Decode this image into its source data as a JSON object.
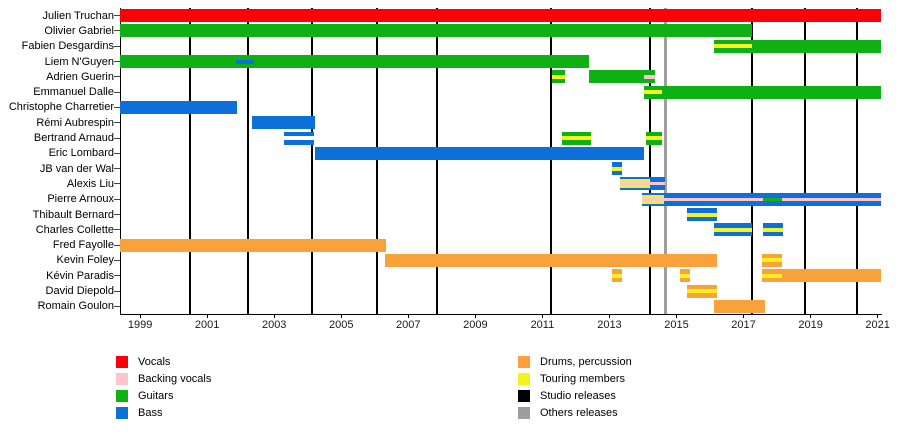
{
  "chart_data": {
    "type": "timeline",
    "title": "",
    "xlabel": "",
    "ylabel": "",
    "x_axis": {
      "tick_years": [
        1999,
        2001,
        2003,
        2005,
        2007,
        2009,
        2011,
        2013,
        2015,
        2017,
        2019,
        2021
      ],
      "range": [
        1998.4,
        2021.1
      ],
      "grid": false
    },
    "colors": {
      "vocals": "#fb0007",
      "backing": "#ffc5cd",
      "guitars": "#0fb014",
      "bass": "#0d6fd8",
      "drums": "#f9a23b",
      "touring": "#f6f120",
      "studio": "#000000",
      "others": "#9e9e9e",
      "white": "#ffffff"
    },
    "members": [
      {
        "name": "Julien Truchan",
        "segments": [
          {
            "from": 1998.4,
            "to": 2021.1,
            "role": "vocals"
          }
        ]
      },
      {
        "name": "Olivier Gabriel",
        "segments": [
          {
            "from": 1998.4,
            "to": 2017.25,
            "role": "guitars"
          }
        ]
      },
      {
        "name": "Fabien Desgardins",
        "segments": [
          {
            "from": 2016.13,
            "to": 2021.1,
            "role": "guitars",
            "stripes": [
              {
                "role": "touring",
                "from": 2016.13,
                "to": 2017.25,
                "band": "mid"
              }
            ]
          }
        ]
      },
      {
        "name": "Liem N'Guyen",
        "segments": [
          {
            "from": 1998.4,
            "to": 2012.4,
            "role": "guitars",
            "stripes": [
              {
                "role": "bass",
                "from": 2001.87,
                "to": 2002.4,
                "band": "mid"
              }
            ]
          }
        ]
      },
      {
        "name": "Adrien Guerin",
        "segments": [
          {
            "from": 2011.3,
            "to": 2011.66,
            "role": "guitars",
            "stripes": [
              {
                "role": "touring",
                "from": 2011.3,
                "to": 2011.66,
                "band": "mid"
              }
            ]
          },
          {
            "from": 2012.4,
            "to": 2014.37,
            "role": "guitars",
            "stripes": [
              {
                "role": "backing",
                "from": 2014.04,
                "to": 2014.37,
                "band": "mid"
              }
            ]
          }
        ]
      },
      {
        "name": "Emmanuel Dalle",
        "segments": [
          {
            "from": 2014.04,
            "to": 2021.1,
            "role": "guitars",
            "stripes": [
              {
                "role": "touring",
                "from": 2014.04,
                "to": 2014.58,
                "band": "mid"
              }
            ]
          }
        ]
      },
      {
        "name": "Christophe Charretier",
        "segments": [
          {
            "from": 1998.4,
            "to": 2001.9,
            "role": "bass"
          }
        ]
      },
      {
        "name": "Rémi Aubrespin",
        "segments": [
          {
            "from": 2002.34,
            "to": 2004.22,
            "role": "bass"
          }
        ]
      },
      {
        "name": "Bertrand Arnaud",
        "segments": [
          {
            "from": 2003.3,
            "to": 2004.19,
            "role": "bass",
            "stripes": [
              {
                "role": "white",
                "from": 2003.3,
                "to": 2004.19,
                "band": "mid"
              }
            ]
          },
          {
            "from": 2011.57,
            "to": 2012.46,
            "role": "guitars",
            "stripes": [
              {
                "role": "touring",
                "from": 2011.57,
                "to": 2012.46,
                "band": "mid"
              }
            ]
          },
          {
            "from": 2014.1,
            "to": 2014.58,
            "role": "guitars",
            "stripes": [
              {
                "role": "touring",
                "from": 2014.1,
                "to": 2014.58,
                "band": "mid"
              }
            ]
          }
        ]
      },
      {
        "name": "Eric Lombard",
        "segments": [
          {
            "from": 2004.22,
            "to": 2014.04,
            "role": "bass"
          }
        ]
      },
      {
        "name": "JB van der Wal",
        "segments": [
          {
            "from": 2013.09,
            "to": 2013.36,
            "role": "bass",
            "stripes": [
              {
                "role": "touring",
                "from": 2013.09,
                "to": 2013.36,
                "band": "mid"
              }
            ]
          }
        ]
      },
      {
        "name": "Alexis Liu",
        "segments": [
          {
            "from": 2013.3,
            "to": 2014.67,
            "role": "bass",
            "stripes": [
              {
                "role": "backing",
                "from": 2013.3,
                "to": 2014.67,
                "band": "center"
              },
              {
                "role": "touring",
                "from": 2013.3,
                "to": 2014.22,
                "band": "upper"
              },
              {
                "role": "touring",
                "from": 2013.3,
                "to": 2014.22,
                "band": "lower"
              }
            ]
          }
        ]
      },
      {
        "name": "Pierre Arnoux",
        "segments": [
          {
            "from": 2013.98,
            "to": 2021.1,
            "role": "bass",
            "stripes": [
              {
                "role": "backing",
                "from": 2013.98,
                "to": 2021.1,
                "band": "center"
              },
              {
                "role": "touring",
                "from": 2013.98,
                "to": 2014.64,
                "band": "upper"
              },
              {
                "role": "touring",
                "from": 2013.98,
                "to": 2014.64,
                "band": "lower"
              },
              {
                "role": "guitars",
                "from": 2017.57,
                "to": 2018.16,
                "band": "center"
              }
            ]
          }
        ]
      },
      {
        "name": "Thibault Bernard",
        "segments": [
          {
            "from": 2015.31,
            "to": 2016.2,
            "role": "bass",
            "stripes": [
              {
                "role": "touring",
                "from": 2015.31,
                "to": 2016.2,
                "band": "mid"
              }
            ]
          }
        ]
      },
      {
        "name": "Charles Collette",
        "segments": [
          {
            "from": 2016.13,
            "to": 2017.25,
            "role": "bass",
            "stripes": [
              {
                "role": "touring",
                "from": 2016.13,
                "to": 2017.25,
                "band": "mid"
              }
            ]
          },
          {
            "from": 2017.57,
            "to": 2018.17,
            "role": "bass",
            "stripes": [
              {
                "role": "touring",
                "from": 2017.57,
                "to": 2018.17,
                "band": "mid"
              }
            ]
          }
        ]
      },
      {
        "name": "Fred Fayolle",
        "segments": [
          {
            "from": 1998.4,
            "to": 2006.33,
            "role": "drums"
          }
        ]
      },
      {
        "name": "Kevin Foley",
        "segments": [
          {
            "from": 2006.3,
            "to": 2016.2,
            "role": "drums"
          },
          {
            "from": 2017.54,
            "to": 2018.16,
            "role": "drums",
            "stripes": [
              {
                "role": "touring",
                "from": 2017.54,
                "to": 2018.16,
                "band": "mid"
              }
            ]
          }
        ]
      },
      {
        "name": "Kévin Paradis",
        "segments": [
          {
            "from": 2013.09,
            "to": 2013.36,
            "role": "drums",
            "stripes": [
              {
                "role": "touring",
                "from": 2013.09,
                "to": 2013.36,
                "band": "mid"
              }
            ]
          },
          {
            "from": 2015.1,
            "to": 2015.4,
            "role": "drums",
            "stripes": [
              {
                "role": "touring",
                "from": 2015.1,
                "to": 2015.4,
                "band": "mid"
              }
            ]
          },
          {
            "from": 2017.54,
            "to": 2021.1,
            "role": "drums",
            "stripes": [
              {
                "role": "touring",
                "from": 2017.54,
                "to": 2018.16,
                "band": "mid"
              }
            ]
          }
        ]
      },
      {
        "name": "David Diepold",
        "segments": [
          {
            "from": 2015.31,
            "to": 2016.2,
            "role": "drums",
            "stripes": [
              {
                "role": "touring",
                "from": 2015.31,
                "to": 2016.2,
                "band": "mid"
              }
            ]
          }
        ]
      },
      {
        "name": "Romain Goulon",
        "segments": [
          {
            "from": 2016.13,
            "to": 2017.63,
            "role": "drums"
          }
        ]
      }
    ],
    "releases": {
      "studio": [
        2000.49,
        2002.22,
        2004.13,
        2006.07,
        2007.87,
        2011.27,
        2014.22,
        2017.25,
        2018.82,
        2020.37
      ],
      "others": [
        2014.67
      ]
    },
    "legend": {
      "left_column": [
        {
          "label": "Vocals",
          "role": "vocals"
        },
        {
          "label": "Backing vocals",
          "role": "backing"
        },
        {
          "label": "Guitars",
          "role": "guitars"
        },
        {
          "label": "Bass",
          "role": "bass"
        }
      ],
      "right_column": [
        {
          "label": "Drums, percussion",
          "role": "drums"
        },
        {
          "label": "Touring members",
          "role": "touring"
        },
        {
          "label": "Studio releases",
          "role": "studio"
        },
        {
          "label": "Others releases",
          "role": "others"
        }
      ]
    }
  }
}
